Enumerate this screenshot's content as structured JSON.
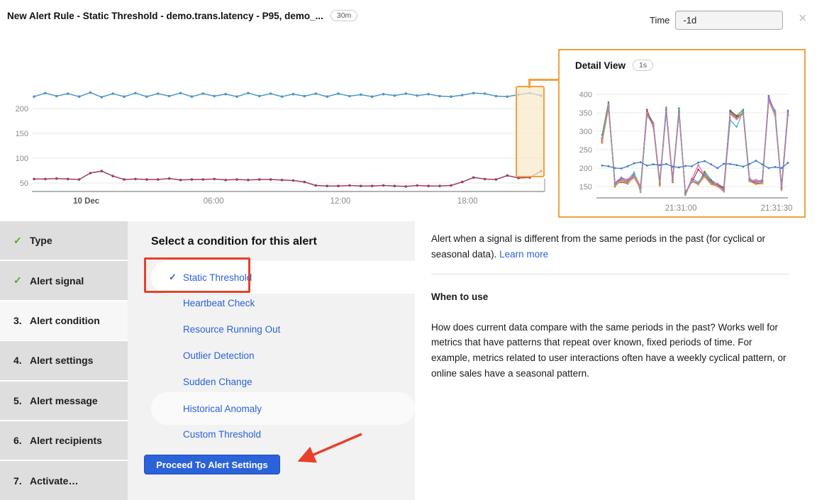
{
  "icons": {
    "check": "✓",
    "close": "×"
  },
  "header": {
    "title": "New Alert Rule - Static Threshold - demo.trans.latency - P95, demo_...",
    "resolution_badge": "30m",
    "time_label": "Time",
    "time_value": "-1d"
  },
  "detail_panel": {
    "title": "Detail View",
    "badge": "1s"
  },
  "sidebar": {
    "items": [
      {
        "prefix": "✓",
        "label": "Type",
        "done": true
      },
      {
        "prefix": "✓",
        "label": "Alert signal",
        "done": true
      },
      {
        "prefix": "3.",
        "label": "Alert condition",
        "active": true
      },
      {
        "prefix": "4.",
        "label": "Alert settings"
      },
      {
        "prefix": "5.",
        "label": "Alert message"
      },
      {
        "prefix": "6.",
        "label": "Alert recipients"
      },
      {
        "prefix": "7.",
        "label": "Activate…"
      }
    ]
  },
  "condition_panel": {
    "heading": "Select a condition for this alert",
    "items": [
      {
        "label": "Static Threshold",
        "selected": true
      },
      {
        "label": "Heartbeat Check"
      },
      {
        "label": "Resource Running Out"
      },
      {
        "label": "Outlier Detection"
      },
      {
        "label": "Sudden Change"
      },
      {
        "label": "Historical Anomaly",
        "highlighted": true
      },
      {
        "label": "Custom Threshold"
      }
    ],
    "button_label": "Proceed To Alert Settings"
  },
  "help_panel": {
    "intro": "Alert when a signal is different from the same periods in the past (for cyclical or seasonal data). ",
    "link": "Learn more",
    "subheading": "When to use",
    "body": "How does current data compare with the same periods in the past? Works well for metrics that have patterns that repeat over known, fixed periods of time. For example, metrics related to user interactions often have a weekly cyclical pattern, or online sales have a seasonal pattern."
  },
  "colors": {
    "accent_blue": "#2b62d9",
    "annotation_red": "#e8402a",
    "highlight_orange": "#f0a23f",
    "check_green": "#54a329"
  },
  "chart_data": [
    {
      "id": "overview",
      "type": "line",
      "title": "",
      "xlabel": "",
      "ylabel": "",
      "y_ticks": [
        200,
        150,
        100,
        50
      ],
      "ylim": [
        33,
        245
      ],
      "x_ticks": [
        {
          "label": "10 Dec",
          "pos": 0.103,
          "bold": true
        },
        {
          "label": "06:00",
          "pos": 0.354
        },
        {
          "label": "12:00",
          "pos": 0.604
        },
        {
          "label": "18:00",
          "pos": 0.855
        }
      ],
      "highlight_region": {
        "from_pos": 0.943,
        "to_pos": 1.0
      },
      "series": [
        {
          "name": "p95-upper-blue",
          "color": "#4e95c9",
          "values": [
            224,
            231,
            225,
            230,
            224,
            232,
            223,
            230,
            224,
            231,
            224,
            230,
            225,
            231,
            224,
            230,
            225,
            229,
            224,
            231,
            225,
            230,
            224,
            229,
            225,
            230,
            224,
            230,
            225,
            228,
            224,
            229,
            226,
            230,
            226,
            229,
            225,
            224,
            227,
            231,
            230,
            225,
            224,
            228,
            231,
            226
          ]
        },
        {
          "name": "p95-lower-magenta",
          "color": "#9c3d68",
          "values": [
            58,
            58,
            59,
            58,
            57,
            70,
            74,
            64,
            57,
            58,
            57,
            57,
            59,
            56,
            57,
            57,
            58,
            56,
            57,
            56,
            57,
            57,
            56,
            55,
            52,
            45,
            44,
            44,
            45,
            44,
            44,
            45,
            44,
            43,
            45,
            44,
            44,
            45,
            52,
            61,
            58,
            57,
            65,
            60,
            61,
            74
          ]
        }
      ]
    },
    {
      "id": "detail",
      "type": "line",
      "title": "Detail View",
      "xlabel": "",
      "ylabel": "",
      "y_ticks": [
        400,
        350,
        300,
        250,
        200,
        150
      ],
      "ylim": [
        120,
        410
      ],
      "x_ticks": [
        {
          "label": "21:31:00",
          "pos": 0.424
        },
        {
          "label": "21:31:30",
          "pos": 0.939
        }
      ],
      "series": [
        {
          "name": "host-green",
          "color": "#3ba33b",
          "values": [
            290,
            378,
            150,
            168,
            162,
            185,
            148,
            352,
            322,
            160,
            360,
            165,
            362,
            127,
            165,
            157,
            190,
            168,
            155,
            138,
            356,
            342,
            358,
            172,
            160,
            168,
            390,
            352,
            145,
            352
          ]
        },
        {
          "name": "host-skyblue",
          "color": "#58b0e8",
          "values": [
            282,
            370,
            158,
            172,
            168,
            188,
            135,
            348,
            315,
            162,
            365,
            170,
            356,
            128,
            172,
            162,
            182,
            162,
            152,
            142,
            330,
            312,
            354,
            166,
            168,
            164,
            388,
            356,
            150,
            346
          ]
        },
        {
          "name": "host-purple",
          "color": "#8a63d2",
          "values": [
            278,
            368,
            160,
            174,
            166,
            178,
            146,
            345,
            316,
            156,
            358,
            166,
            354,
            130,
            166,
            158,
            184,
            164,
            156,
            144,
            350,
            336,
            352,
            170,
            162,
            166,
            396,
            344,
            152,
            356
          ]
        },
        {
          "name": "host-pink",
          "color": "#ef6fae",
          "values": [
            275,
            372,
            152,
            166,
            170,
            180,
            152,
            342,
            320,
            164,
            356,
            172,
            350,
            132,
            170,
            208,
            180,
            160,
            158,
            146,
            348,
            334,
            350,
            168,
            166,
            162,
            386,
            350,
            146,
            348
          ]
        },
        {
          "name": "host-darkred",
          "color": "#a04545",
          "values": [
            272,
            365,
            156,
            162,
            158,
            176,
            144,
            358,
            312,
            154,
            352,
            162,
            348,
            134,
            162,
            196,
            178,
            158,
            154,
            148,
            354,
            340,
            348,
            166,
            158,
            160,
            384,
            346,
            144,
            344
          ]
        },
        {
          "name": "host-orange",
          "color": "#e8a33d",
          "values": [
            268,
            362,
            154,
            164,
            160,
            174,
            142,
            350,
            310,
            152,
            354,
            164,
            352,
            129,
            164,
            155,
            176,
            156,
            150,
            136,
            346,
            332,
            346,
            164,
            156,
            158,
            382,
            342,
            140,
            342
          ]
        },
        {
          "name": "host-mauve",
          "color": "#9d86b5",
          "values": [
            280,
            366,
            157,
            169,
            163,
            179,
            147,
            347,
            314,
            159,
            357,
            167,
            353,
            131,
            167,
            159,
            181,
            161,
            153,
            139,
            349,
            335,
            351,
            167,
            161,
            165,
            387,
            347,
            147,
            345
          ]
        },
        {
          "name": "host-blue",
          "color": "#3f7cc4",
          "values": [
            207,
            205,
            200,
            199,
            205,
            213,
            216,
            207,
            210,
            208,
            211,
            204,
            202,
            206,
            205,
            215,
            219,
            210,
            200,
            212,
            211,
            208,
            204,
            211,
            220,
            210,
            200,
            203,
            200,
            214
          ]
        }
      ]
    }
  ]
}
